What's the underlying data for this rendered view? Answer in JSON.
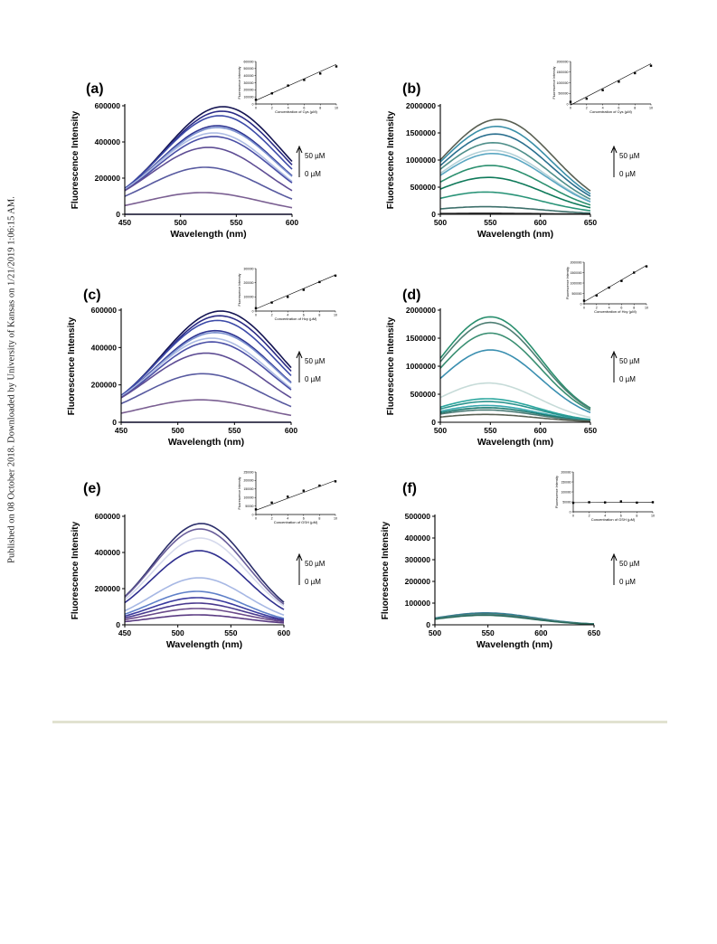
{
  "document": {
    "side_note": "Published on 08 October 2018. Downloaded by University of Kansas on 1/21/2019 1:06:15 AM."
  },
  "chart_data": [
    {
      "panel": "(a)",
      "type": "line",
      "xlabel": "Wavelength (nm)",
      "ylabel": "Fluorescence Intensity",
      "xlim": [
        450,
        600
      ],
      "ylim": [
        0,
        600000
      ],
      "xticks": [
        450,
        500,
        550,
        600
      ],
      "yticks": [
        0,
        200000,
        400000,
        600000
      ],
      "annotation_top": "50 µM",
      "annotation_bottom": "0 µM",
      "palette": [
        "#141452",
        "#2b2b86",
        "#3c4aa8",
        "#2e3592",
        "#7d93d0",
        "#aebde4",
        "#4a4fa6",
        "#5e4d94",
        "#585aa0",
        "#7a5f92",
        "#1e1c70"
      ],
      "curves": [
        {
          "peak": 595000,
          "center": 538,
          "sigma": 52
        },
        {
          "peak": 570000,
          "center": 537,
          "sigma": 52
        },
        {
          "peak": 545000,
          "center": 535,
          "sigma": 52
        },
        {
          "peak": 490000,
          "center": 533,
          "sigma": 52
        },
        {
          "peak": 480000,
          "center": 533,
          "sigma": 52
        },
        {
          "peak": 450000,
          "center": 530,
          "sigma": 52
        },
        {
          "peak": 430000,
          "center": 530,
          "sigma": 52
        },
        {
          "peak": 370000,
          "center": 525,
          "sigma": 52
        },
        {
          "peak": 260000,
          "center": 522,
          "sigma": 52
        },
        {
          "peak": 120000,
          "center": 520,
          "sigma": 52
        },
        {
          "peak": 0,
          "center": 520,
          "sigma": 52
        }
      ],
      "inset": {
        "xlabel": "Concentration of Cys (µM)",
        "ylabel": "Fluorescence Intensity",
        "xlim": [
          0,
          10
        ],
        "ylim": [
          0,
          600000
        ],
        "xticks": [
          0,
          2,
          4,
          6,
          8,
          10
        ],
        "yticks": [
          0,
          100000,
          200000,
          300000,
          400000,
          500000,
          600000
        ],
        "x": [
          0,
          2,
          4,
          6,
          8,
          10
        ],
        "y": [
          60000,
          150000,
          260000,
          340000,
          430000,
          530000
        ],
        "fit": [
          [
            0,
            50000
          ],
          [
            10,
            560000
          ]
        ]
      }
    },
    {
      "panel": "(b)",
      "type": "line",
      "xlabel": "Wavelength (nm)",
      "ylabel": "Fluorescence Intensity",
      "xlim": [
        500,
        650
      ],
      "ylim": [
        0,
        2000000
      ],
      "xticks": [
        500,
        550,
        600,
        650
      ],
      "yticks": [
        0,
        500000,
        1000000,
        1500000,
        2000000
      ],
      "annotation_top": "50 µM",
      "annotation_bottom": "0 µM",
      "palette": [
        "#595f52",
        "#3a8fa8",
        "#2a6f8e",
        "#4f8f8a",
        "#b3d1d8",
        "#5aa7c2",
        "#2a8f6e",
        "#0f7a5a",
        "#2a9478",
        "#3c6f6a",
        "#3a3a3a"
      ],
      "curves": [
        {
          "peak": 1750000,
          "center": 558,
          "sigma": 55
        },
        {
          "peak": 1620000,
          "center": 556,
          "sigma": 55
        },
        {
          "peak": 1480000,
          "center": 555,
          "sigma": 55
        },
        {
          "peak": 1320000,
          "center": 553,
          "sigma": 55
        },
        {
          "peak": 1180000,
          "center": 552,
          "sigma": 55
        },
        {
          "peak": 1120000,
          "center": 552,
          "sigma": 55
        },
        {
          "peak": 900000,
          "center": 550,
          "sigma": 55
        },
        {
          "peak": 680000,
          "center": 548,
          "sigma": 55
        },
        {
          "peak": 410000,
          "center": 545,
          "sigma": 55
        },
        {
          "peak": 140000,
          "center": 545,
          "sigma": 55
        },
        {
          "peak": 20000,
          "center": 545,
          "sigma": 55
        }
      ],
      "inset": {
        "xlabel": "Concentration of Cys (µM)",
        "ylabel": "Fluorescence Intensity",
        "xlim": [
          0,
          10
        ],
        "ylim": [
          0,
          2000000
        ],
        "xticks": [
          0,
          2,
          4,
          6,
          8,
          10
        ],
        "yticks": [
          0,
          500000,
          1000000,
          1500000,
          2000000
        ],
        "x": [
          0,
          2,
          4,
          6,
          8,
          10
        ],
        "y": [
          100000,
          250000,
          650000,
          1050000,
          1450000,
          1800000
        ],
        "fit": [
          [
            0,
            -50000
          ],
          [
            10,
            1900000
          ]
        ]
      }
    },
    {
      "panel": "(c)",
      "type": "line",
      "xlabel": "Wavelength (nm)",
      "ylabel": "Fluorescence Intensity",
      "xlim": [
        450,
        600
      ],
      "ylim": [
        0,
        600000
      ],
      "xticks": [
        450,
        500,
        550,
        600
      ],
      "yticks": [
        0,
        200000,
        400000,
        600000
      ],
      "annotation_top": "50 µM",
      "annotation_bottom": "0 µM",
      "palette": [
        "#141452",
        "#2b2b86",
        "#3c4aa8",
        "#2e3592",
        "#7d93d0",
        "#aebde4",
        "#4a4fa6",
        "#5e4d94",
        "#585aa0",
        "#7a5f92",
        "#1e1c70"
      ],
      "curves": [
        {
          "peak": 595000,
          "center": 538,
          "sigma": 52
        },
        {
          "peak": 570000,
          "center": 537,
          "sigma": 52
        },
        {
          "peak": 545000,
          "center": 535,
          "sigma": 52
        },
        {
          "peak": 490000,
          "center": 533,
          "sigma": 52
        },
        {
          "peak": 480000,
          "center": 533,
          "sigma": 52
        },
        {
          "peak": 450000,
          "center": 530,
          "sigma": 52
        },
        {
          "peak": 430000,
          "center": 530,
          "sigma": 52
        },
        {
          "peak": 370000,
          "center": 525,
          "sigma": 52
        },
        {
          "peak": 260000,
          "center": 522,
          "sigma": 52
        },
        {
          "peak": 120000,
          "center": 520,
          "sigma": 52
        },
        {
          "peak": 0,
          "center": 520,
          "sigma": 52
        }
      ],
      "inset": {
        "xlabel": "Concentration of Hcy (µM)",
        "ylabel": "Fluorescence Intensity",
        "xlim": [
          0,
          10
        ],
        "ylim": [
          0,
          300000
        ],
        "xticks": [
          0,
          2,
          4,
          6,
          8,
          10
        ],
        "yticks": [
          0,
          100000,
          200000,
          300000
        ],
        "x": [
          0,
          2,
          4,
          6,
          8,
          10
        ],
        "y": [
          20000,
          60000,
          100000,
          150000,
          205000,
          250000
        ],
        "fit": [
          [
            0,
            15000
          ],
          [
            10,
            255000
          ]
        ]
      }
    },
    {
      "panel": "(d)",
      "type": "line",
      "xlabel": "Wavelength (nm)",
      "ylabel": "Fluorescence Intensity",
      "xlim": [
        500,
        650
      ],
      "ylim": [
        0,
        2000000
      ],
      "xticks": [
        500,
        550,
        600,
        650
      ],
      "yticks": [
        0,
        500000,
        1000000,
        1500000,
        2000000
      ],
      "annotation_top": "50 µM",
      "annotation_bottom": "0 µM",
      "palette": [
        "#2a8f6e",
        "#4f7f74",
        "#3a8f72",
        "#3a8fb0",
        "#c6dbd8",
        "#2aa69e",
        "#2a948e",
        "#3aa8b0",
        "#1a7a70",
        "#4a7a74",
        "#595f52"
      ],
      "curves": [
        {
          "peak": 1880000,
          "center": 550,
          "sigma": 50
        },
        {
          "peak": 1780000,
          "center": 550,
          "sigma": 50
        },
        {
          "peak": 1590000,
          "center": 550,
          "sigma": 50
        },
        {
          "peak": 1290000,
          "center": 550,
          "sigma": 50
        },
        {
          "peak": 700000,
          "center": 548,
          "sigma": 50
        },
        {
          "peak": 420000,
          "center": 547,
          "sigma": 50
        },
        {
          "peak": 370000,
          "center": 547,
          "sigma": 50
        },
        {
          "peak": 300000,
          "center": 546,
          "sigma": 50
        },
        {
          "peak": 260000,
          "center": 546,
          "sigma": 50
        },
        {
          "peak": 220000,
          "center": 545,
          "sigma": 50
        },
        {
          "peak": 140000,
          "center": 545,
          "sigma": 50
        }
      ],
      "inset": {
        "xlabel": "Concentration of Hcy (µM)",
        "ylabel": "Fluorescence Intensity",
        "xlim": [
          0,
          10
        ],
        "ylim": [
          0,
          2000000
        ],
        "xticks": [
          0,
          2,
          4,
          6,
          8,
          10
        ],
        "yticks": [
          0,
          500000,
          1000000,
          1500000,
          2000000
        ],
        "x": [
          0,
          2,
          4,
          6,
          8,
          10
        ],
        "y": [
          150000,
          400000,
          780000,
          1100000,
          1500000,
          1800000
        ],
        "fit": [
          [
            0,
            100000
          ],
          [
            10,
            1850000
          ]
        ]
      }
    },
    {
      "panel": "(e)",
      "type": "line",
      "xlabel": "Wavelength (nm)",
      "ylabel": "Fluorescence Intensity",
      "xlim": [
        450,
        600
      ],
      "ylim": [
        0,
        600000
      ],
      "xticks": [
        450,
        500,
        550,
        600
      ],
      "yticks": [
        0,
        200000,
        400000,
        600000
      ],
      "annotation_top": "50 µM",
      "annotation_bottom": "0 µM",
      "palette": [
        "#2b2e6a",
        "#6a5e9a",
        "#d5d9ec",
        "#2e2e8e",
        "#a7b8e4",
        "#5f80c8",
        "#3a3a9e",
        "#4a3a8e",
        "#6a4a8a",
        "#5a3a82"
      ],
      "curves": [
        {
          "peak": 560000,
          "center": 522,
          "sigma": 45
        },
        {
          "peak": 530000,
          "center": 521,
          "sigma": 45
        },
        {
          "peak": 480000,
          "center": 521,
          "sigma": 45
        },
        {
          "peak": 410000,
          "center": 520,
          "sigma": 45
        },
        {
          "peak": 260000,
          "center": 520,
          "sigma": 45
        },
        {
          "peak": 185000,
          "center": 518,
          "sigma": 45
        },
        {
          "peak": 150000,
          "center": 518,
          "sigma": 45
        },
        {
          "peak": 120000,
          "center": 518,
          "sigma": 45
        },
        {
          "peak": 90000,
          "center": 518,
          "sigma": 45
        },
        {
          "peak": 55000,
          "center": 518,
          "sigma": 45
        }
      ],
      "inset": {
        "xlabel": "Concentration of GSH (µM)",
        "ylabel": "Fluorescence Intensity",
        "xlim": [
          0,
          10
        ],
        "ylim": [
          0,
          250000
        ],
        "xticks": [
          0,
          2,
          4,
          6,
          8,
          10
        ],
        "yticks": [
          0,
          50000,
          100000,
          150000,
          200000,
          250000
        ],
        "x": [
          0,
          2,
          4,
          6,
          8,
          10
        ],
        "y": [
          30000,
          70000,
          105000,
          140000,
          170000,
          195000
        ],
        "fit": [
          [
            0,
            25000
          ],
          [
            10,
            200000
          ]
        ]
      }
    },
    {
      "panel": "(f)",
      "type": "line",
      "xlabel": "Wavelength (nm)",
      "ylabel": "Fluorescence Intensity",
      "xlim": [
        500,
        650
      ],
      "ylim": [
        0,
        500000
      ],
      "xticks": [
        500,
        550,
        600,
        650
      ],
      "yticks": [
        0,
        100000,
        200000,
        300000,
        400000,
        500000
      ],
      "annotation_top": "50 µM",
      "annotation_bottom": "0 µM",
      "palette": [
        "#3a6f8e",
        "#2a8fa0",
        "#2f7a6a",
        "#6a6a6a",
        "#4a9aaa",
        "#2a6a5a"
      ],
      "curves": [
        {
          "peak": 55000,
          "center": 548,
          "sigma": 45
        },
        {
          "peak": 52000,
          "center": 548,
          "sigma": 45
        },
        {
          "peak": 50000,
          "center": 547,
          "sigma": 45
        },
        {
          "peak": 48000,
          "center": 547,
          "sigma": 45
        },
        {
          "peak": 46000,
          "center": 546,
          "sigma": 45
        },
        {
          "peak": 44000,
          "center": 546,
          "sigma": 45
        }
      ],
      "inset": {
        "xlabel": "Concentration of GSH (µM)",
        "ylabel": "Fluorescence Intensity",
        "xlim": [
          0,
          10
        ],
        "ylim": [
          0,
          200000
        ],
        "xticks": [
          0,
          2,
          4,
          6,
          8,
          10
        ],
        "yticks": [
          0,
          50000,
          100000,
          150000,
          200000
        ],
        "x": [
          0,
          2,
          4,
          6,
          8,
          10
        ],
        "y": [
          45000,
          48000,
          47000,
          52000,
          46000,
          48000
        ],
        "fit": [
          [
            0,
            46000
          ],
          [
            10,
            48000
          ]
        ]
      }
    }
  ]
}
